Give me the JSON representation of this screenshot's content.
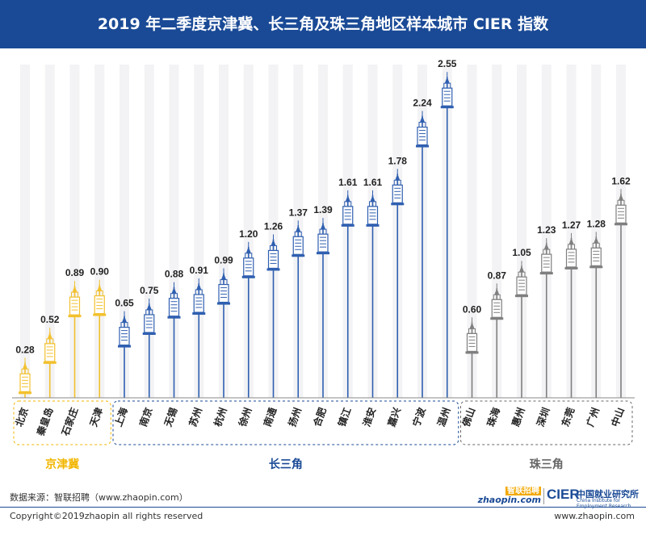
{
  "title": "2019 年二季度京津冀、长三角及珠三角地区样本城市 CIER 指数",
  "source": "数据来源：智联招聘（www.zhaopin.com）",
  "copyright": "Copyright©2019zhaopin all rights reserved",
  "website": "www.zhaopin.com",
  "logos": {
    "zhaopin_cn": "智联招聘",
    "zhaopin_en": "zhaopin.com",
    "cier_abbr": "CIER",
    "cier_cn": "中国就业研究所",
    "cier_en": "China Institute for Employment Research"
  },
  "colors": {
    "title_bar": "#1a4a96",
    "jingjinji": "#f2c12e",
    "changsanjiao": "#2f5fb0",
    "zhusanjiao": "#7f7f7f",
    "group_jingjinji_label": "#f2b600",
    "group_changsanjiao_label": "#1a4a96",
    "group_zhusanjiao_label": "#666666"
  },
  "chart_data": {
    "type": "bar",
    "title": "2019 年二季度京津冀、长三角及珠三角地区样本城市 CIER 指数",
    "ylim": [
      0,
      2.6
    ],
    "grid": false,
    "groups": [
      {
        "name": "京津冀",
        "categories": [
          "北京",
          "秦皇岛",
          "石家庄",
          "天津"
        ],
        "values": [
          0.28,
          0.52,
          0.89,
          0.9
        ]
      },
      {
        "name": "长三角",
        "categories": [
          "上海",
          "南京",
          "无锡",
          "苏州",
          "杭州",
          "徐州",
          "南通",
          "扬州",
          "合肥",
          "镇江",
          "淮安",
          "嘉兴",
          "宁波",
          "温州"
        ],
        "values": [
          0.65,
          0.75,
          0.88,
          0.91,
          0.99,
          1.2,
          1.26,
          1.37,
          1.39,
          1.61,
          1.61,
          1.78,
          2.24,
          2.55
        ]
      },
      {
        "name": "珠三角",
        "categories": [
          "佛山",
          "珠海",
          "惠州",
          "深圳",
          "东莞",
          "广州",
          "中山"
        ],
        "values": [
          0.6,
          0.87,
          1.05,
          1.23,
          1.27,
          1.28,
          1.62
        ]
      }
    ]
  }
}
